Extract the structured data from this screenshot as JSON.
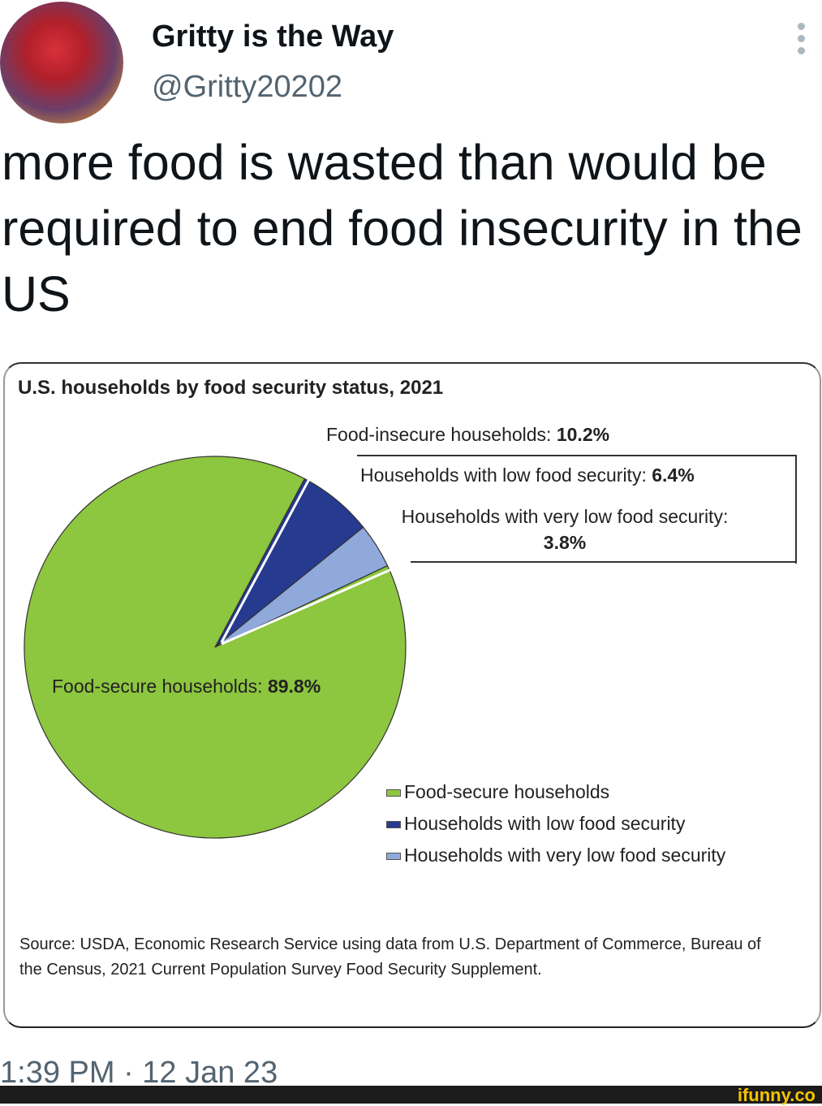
{
  "tweet": {
    "display_name": "Gritty is the Way",
    "handle": "@Gritty20202",
    "text": "more food is wasted than would be required to end food insecurity in the US",
    "timestamp": "1:39 PM · 12 Jan 23"
  },
  "watermark": "ifunny.co",
  "chart_data": {
    "type": "pie",
    "title": "U.S. households by food security status, 2021",
    "slices": [
      {
        "label": "Food-secure households",
        "value": 89.8,
        "color": "#8dc63f"
      },
      {
        "label": "Households with low food security",
        "value": 6.4,
        "color": "#263a8f"
      },
      {
        "label": "Households with very low food security",
        "value": 3.8,
        "color": "#8fa9db"
      }
    ],
    "annotations": {
      "insecure_label": "Food-insecure households: ",
      "insecure_value": "10.2%",
      "low_label": "Households with low food security: ",
      "low_value": "6.4%",
      "vlow_label": "Households with very low food security: ",
      "vlow_value": "3.8%",
      "secure_label": "Food-secure households: ",
      "secure_value": "89.8%"
    },
    "legend_placement": "bottom-right",
    "source": "Source: USDA, Economic Research Service using data from U.S. Department of Commerce, Bureau of the Census, 2021 Current Population Survey Food Security Supplement."
  }
}
